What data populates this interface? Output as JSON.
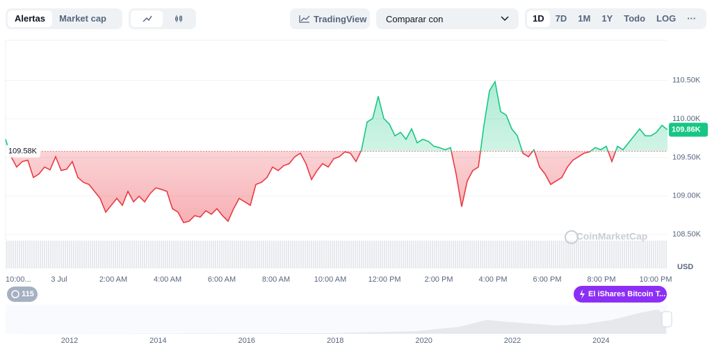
{
  "toolbar": {
    "tabs": [
      "Alertas",
      "Market cap"
    ],
    "tradingview": "TradingView",
    "compare": "Comparar con",
    "ranges": [
      "1D",
      "7D",
      "1M",
      "1Y",
      "Todo",
      "LOG"
    ],
    "more": "···"
  },
  "chart_data": {
    "type": "line",
    "x_labels": [
      "10:00...",
      "3 Jul",
      "2:00 AM",
      "4:00 AM",
      "6:00 AM",
      "8:00 AM",
      "10:00 AM",
      "12:00 PM",
      "2:00 PM",
      "4:00 PM",
      "6:00 PM",
      "8:00 PM",
      "10:00 PM"
    ],
    "values": [
      109735,
      109510,
      109375,
      109447,
      109465,
      109240,
      109285,
      109375,
      109339,
      109510,
      109330,
      109348,
      109447,
      109240,
      109177,
      109150,
      109060,
      108970,
      108790,
      108880,
      108970,
      108880,
      109060,
      108925,
      108997,
      108925,
      109033,
      109105,
      109087,
      109060,
      108835,
      108790,
      108655,
      108673,
      108745,
      108727,
      108808,
      108763,
      108835,
      108745,
      108673,
      108835,
      108970,
      108925,
      108880,
      109150,
      109177,
      109240,
      109375,
      109330,
      109393,
      109420,
      109510,
      109555,
      109420,
      109213,
      109330,
      109420,
      109375,
      109483,
      109510,
      109573,
      109555,
      109447,
      109600,
      109960,
      110005,
      110293,
      110005,
      109933,
      109780,
      109825,
      109735,
      109870,
      109690,
      109735,
      109708,
      109645,
      109627,
      109600,
      109627,
      109285,
      108862,
      109195,
      109330,
      109375,
      109915,
      110365,
      110482,
      110095,
      110050,
      109870,
      109780,
      109555,
      109510,
      109600,
      109375,
      109285,
      109150,
      109195,
      109240,
      109375,
      109465,
      109510,
      109555,
      109573,
      109627,
      109600,
      109645,
      109447,
      109645,
      109600,
      109690,
      109780,
      109870,
      109780,
      109780,
      109825,
      109915,
      109860
    ],
    "ylim": [
      108070,
      111000
    ],
    "yticks": [
      {
        "value": 108500,
        "label": "108.50K"
      },
      {
        "value": 109000,
        "label": "109.00K"
      },
      {
        "value": 109500,
        "label": "109.50K"
      },
      {
        "value": 110000,
        "label": "110.00K"
      },
      {
        "value": 110500,
        "label": "110.50K"
      }
    ],
    "baseline": {
      "value": 109580,
      "label": "109.58K"
    },
    "current": {
      "value": 109860,
      "label": "109.86K"
    },
    "up_color": "#16c784",
    "down_color": "#ea3943",
    "currency": "USD",
    "watermark": "CoinMarketCap",
    "badge": "115",
    "event": "El iShares Bitcoin T..."
  },
  "navigator": {
    "years": [
      "2012",
      "2014",
      "2016",
      "2018",
      "2020",
      "2022",
      "2024"
    ]
  }
}
